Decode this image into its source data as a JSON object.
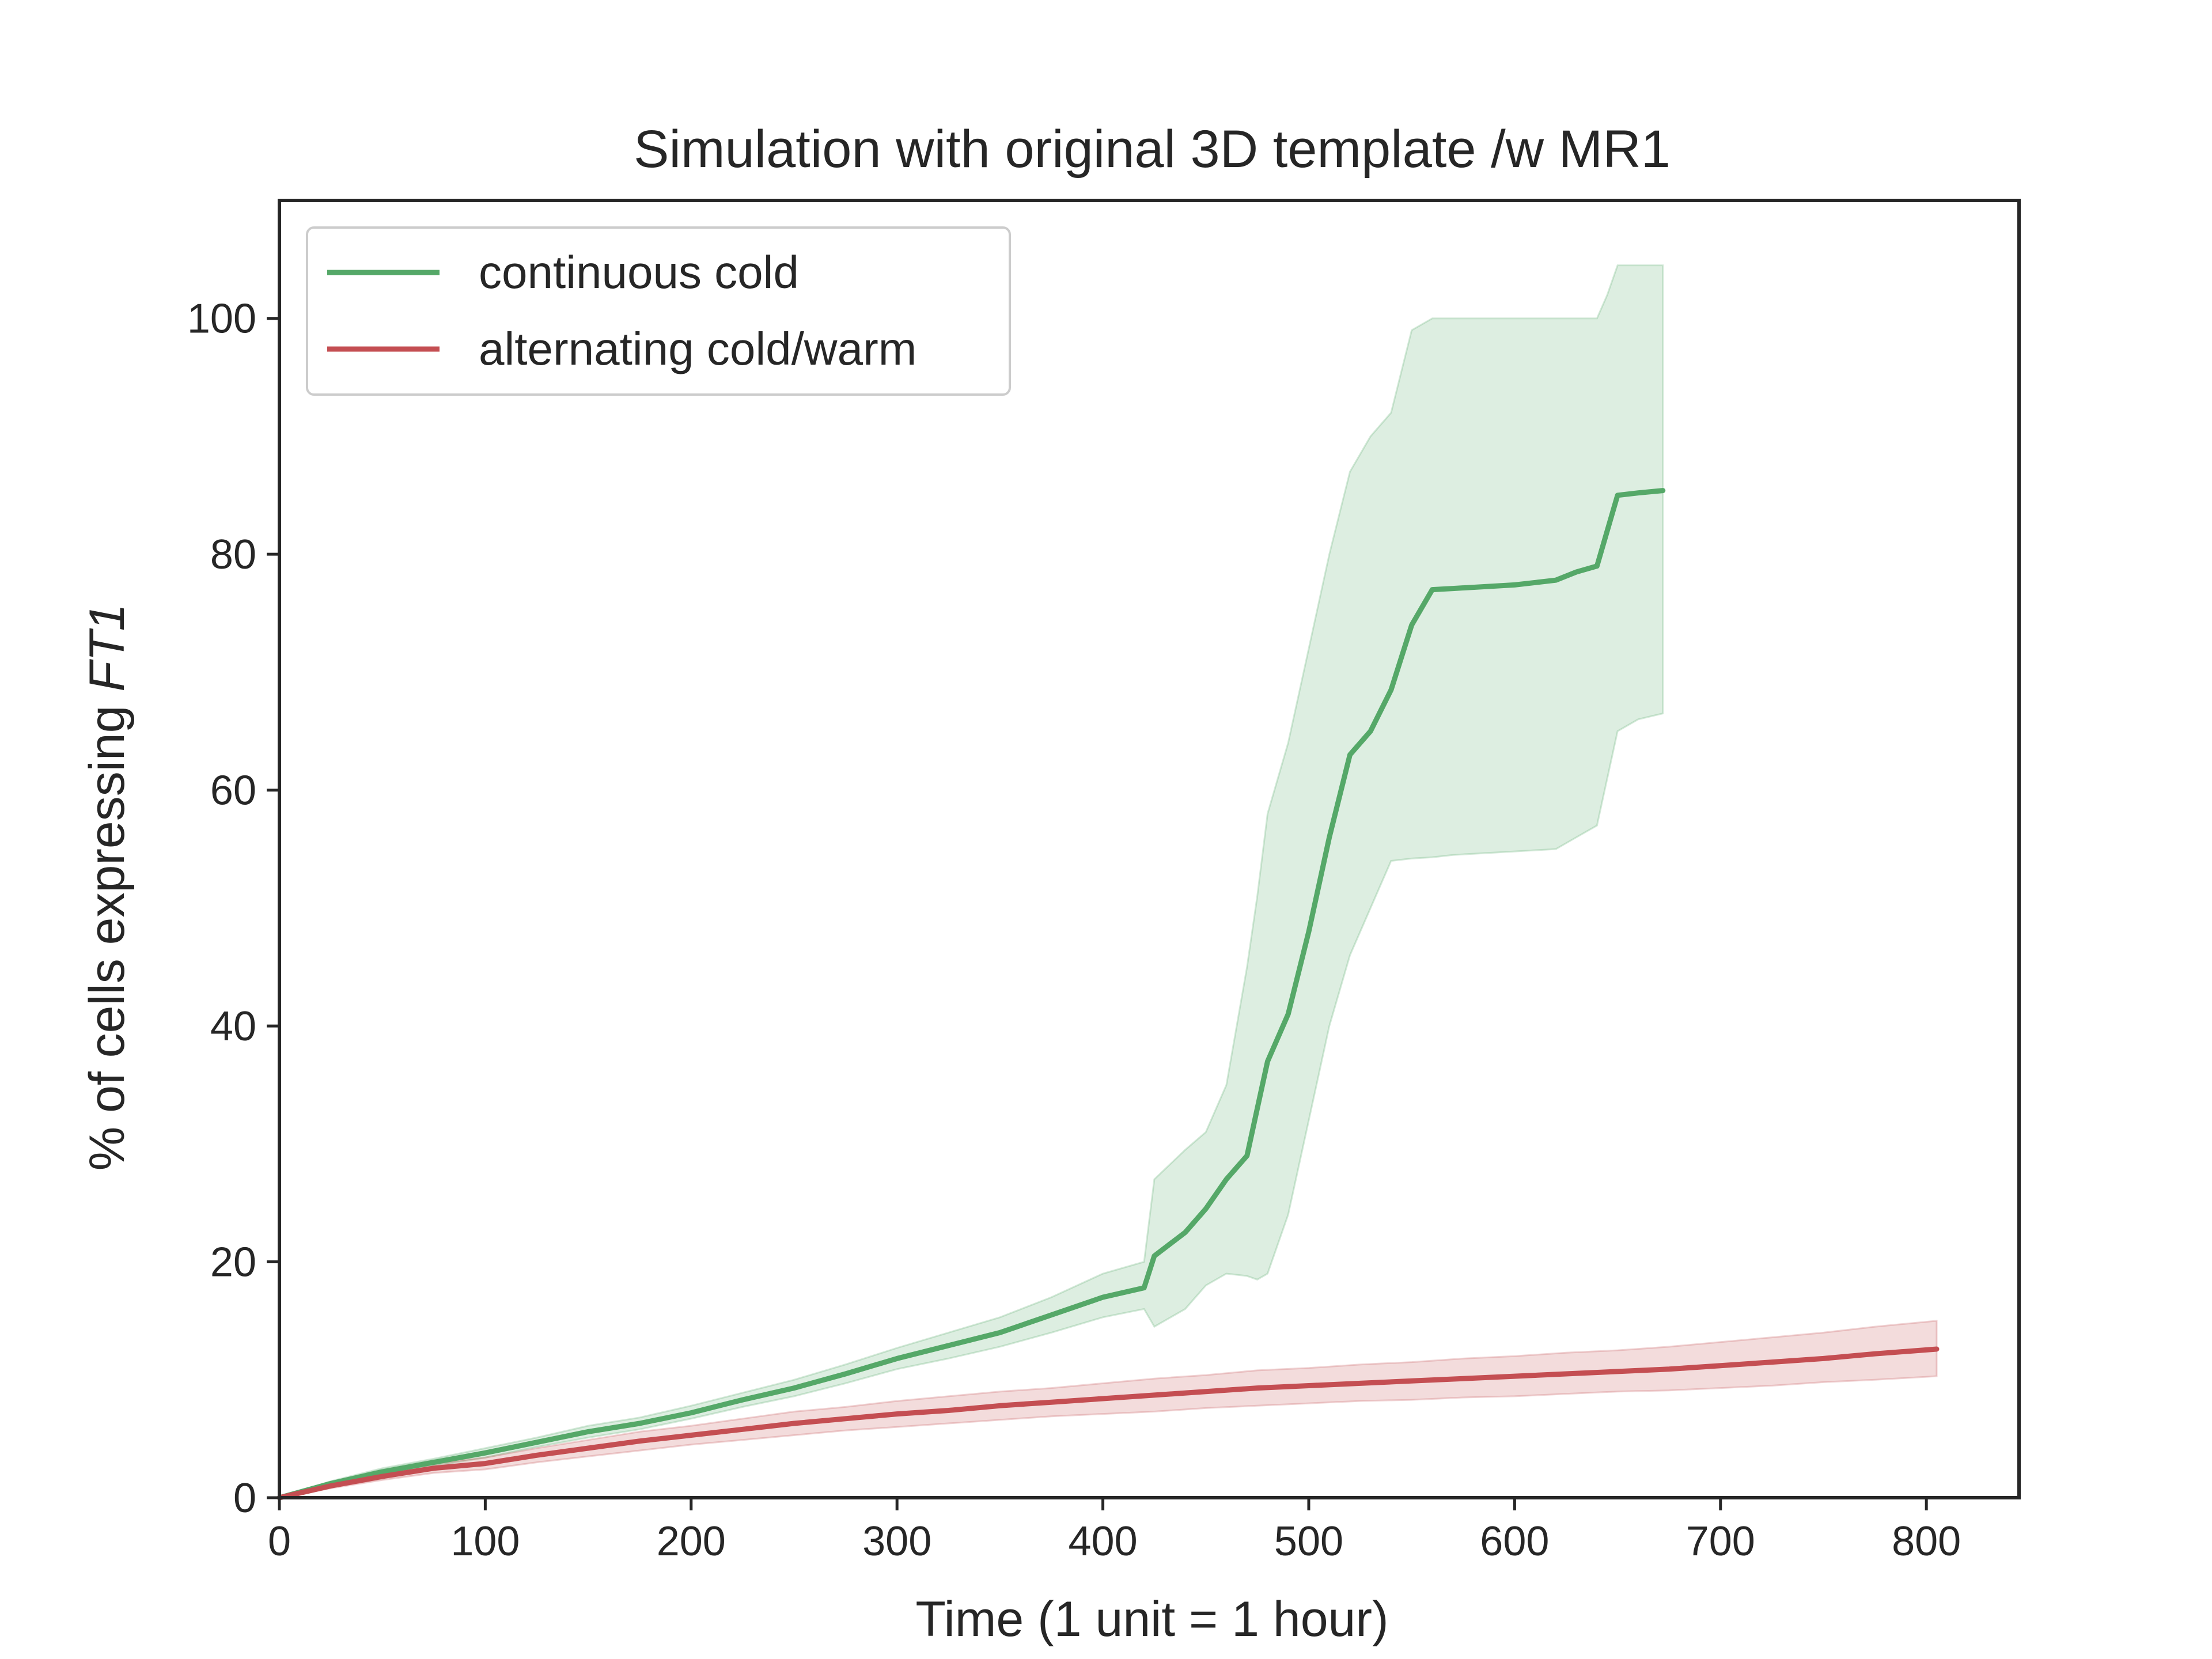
{
  "chart_data": {
    "type": "line",
    "title": "Simulation with original 3D template /w MR1",
    "xlabel": "Time (1 unit = 1 hour)",
    "ylabel_prefix": "% of cells expressing ",
    "ylabel_italic": "FT1",
    "xlim": [
      0,
      845
    ],
    "ylim": [
      0,
      110
    ],
    "xticks": [
      0,
      100,
      200,
      300,
      400,
      500,
      600,
      700,
      800
    ],
    "yticks": [
      0,
      20,
      40,
      60,
      80,
      100
    ],
    "grid": false,
    "legend_position": "upper-left",
    "series": [
      {
        "name": "continuous cold",
        "color": "#55a868",
        "band_color": "#55a868",
        "x": [
          0,
          25,
          50,
          75,
          100,
          125,
          150,
          175,
          200,
          225,
          250,
          275,
          300,
          325,
          350,
          375,
          400,
          420,
          425,
          440,
          450,
          460,
          470,
          475,
          480,
          490,
          500,
          510,
          520,
          530,
          540,
          550,
          560,
          570,
          600,
          620,
          630,
          640,
          645,
          650,
          660,
          672
        ],
        "y": [
          0,
          1.2,
          2.2,
          3.0,
          3.8,
          4.7,
          5.6,
          6.3,
          7.2,
          8.3,
          9.3,
          10.5,
          11.8,
          12.9,
          14.0,
          15.5,
          17.0,
          17.8,
          20.5,
          22.5,
          24.5,
          27.0,
          29.0,
          33.0,
          37.0,
          41.0,
          48.0,
          56.0,
          63.0,
          65.0,
          68.5,
          74.0,
          77.0,
          77.1,
          77.4,
          77.8,
          78.5,
          79.0,
          82.0,
          85.0,
          85.2,
          85.4
        ],
        "lower": [
          0,
          1.0,
          1.9,
          2.7,
          3.4,
          4.3,
          5.1,
          5.8,
          6.7,
          7.7,
          8.6,
          9.7,
          10.9,
          11.8,
          12.8,
          14.0,
          15.3,
          16.0,
          14.5,
          16.0,
          18.0,
          19.0,
          18.8,
          18.5,
          19.0,
          24.0,
          32.0,
          40.0,
          46.0,
          50.0,
          54.0,
          54.2,
          54.3,
          54.5,
          54.8,
          55.0,
          56.0,
          57.0,
          61.0,
          65.0,
          66.0,
          66.5
        ],
        "upper": [
          0,
          1.4,
          2.5,
          3.3,
          4.2,
          5.1,
          6.1,
          6.8,
          7.8,
          8.9,
          10.0,
          11.3,
          12.7,
          14.0,
          15.3,
          17.0,
          19.0,
          20.0,
          27.0,
          29.5,
          31.0,
          35.0,
          45.0,
          51.0,
          58.0,
          64.0,
          72.0,
          80.0,
          87.0,
          90.0,
          92.0,
          99.0,
          100.0,
          100.0,
          100.0,
          100.0,
          100.0,
          100.0,
          102.0,
          104.5,
          104.5,
          104.5
        ]
      },
      {
        "name": "alternating cold/warm",
        "color": "#c44e52",
        "band_color": "#c44e52",
        "x": [
          0,
          25,
          50,
          75,
          100,
          125,
          150,
          175,
          200,
          225,
          250,
          275,
          300,
          325,
          350,
          375,
          400,
          425,
          450,
          475,
          500,
          525,
          550,
          575,
          600,
          625,
          650,
          675,
          700,
          725,
          750,
          775,
          805
        ],
        "y": [
          0,
          1.0,
          1.8,
          2.5,
          2.9,
          3.6,
          4.2,
          4.8,
          5.3,
          5.8,
          6.3,
          6.7,
          7.1,
          7.4,
          7.8,
          8.1,
          8.4,
          8.7,
          9.0,
          9.3,
          9.5,
          9.7,
          9.9,
          10.1,
          10.3,
          10.5,
          10.7,
          10.9,
          11.2,
          11.5,
          11.8,
          12.2,
          12.6
        ],
        "lower": [
          0,
          0.8,
          1.5,
          2.1,
          2.4,
          3.0,
          3.5,
          4.0,
          4.5,
          4.9,
          5.3,
          5.7,
          6.0,
          6.3,
          6.6,
          6.9,
          7.1,
          7.3,
          7.6,
          7.8,
          8.0,
          8.2,
          8.3,
          8.5,
          8.6,
          8.8,
          9.0,
          9.1,
          9.3,
          9.5,
          9.8,
          10.0,
          10.3
        ],
        "upper": [
          0,
          1.2,
          2.1,
          2.9,
          3.4,
          4.2,
          4.9,
          5.6,
          6.1,
          6.7,
          7.3,
          7.7,
          8.2,
          8.6,
          9.0,
          9.3,
          9.7,
          10.1,
          10.4,
          10.8,
          11.0,
          11.3,
          11.5,
          11.8,
          12.0,
          12.3,
          12.5,
          12.8,
          13.2,
          13.6,
          14.0,
          14.5,
          15.0
        ]
      }
    ]
  }
}
